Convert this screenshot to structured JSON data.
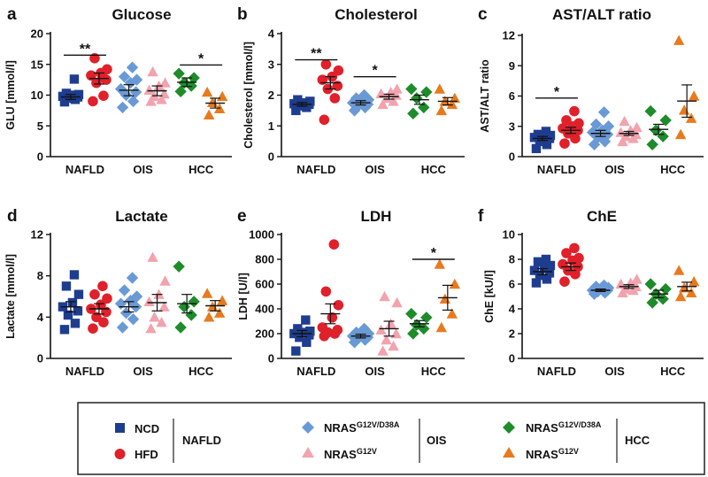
{
  "figure": {
    "legend": {
      "nafld_label": "NAFLD",
      "ois_label": "OIS",
      "hcc_label": "HCC",
      "entries": [
        {
          "key": "ncd",
          "label": "NCD",
          "sup": "",
          "shape": "square",
          "color": "#1f3d8f"
        },
        {
          "key": "hfd",
          "label": "HFD",
          "sup": "",
          "shape": "circle",
          "color": "#e0202a"
        },
        {
          "key": "ois_d38a",
          "label": "NRAS",
          "sup": "G12V/D38A",
          "shape": "diamond",
          "color": "#6a9ad6"
        },
        {
          "key": "ois_g12v",
          "label": "NRAS",
          "sup": "G12V",
          "shape": "triangle",
          "color": "#f2a3ad"
        },
        {
          "key": "hcc_d38a",
          "label": "NRAS",
          "sup": "G12V/D38A",
          "shape": "diamond",
          "color": "#1e8c2a"
        },
        {
          "key": "hcc_g12v",
          "label": "NRAS",
          "sup": "G12V",
          "shape": "triangle",
          "color": "#e87a1e"
        }
      ]
    }
  },
  "chart_data": [
    {
      "panel": "a",
      "type": "scatter",
      "title": "Glucose",
      "ylabel": "GLU [mmol/l]",
      "ylim": [
        0,
        20
      ],
      "yticks": [
        0,
        5,
        10,
        15,
        20
      ],
      "tick_labels": [
        "0",
        "5",
        "10",
        "15",
        "20"
      ],
      "groups": [
        "NAFLD",
        "OIS",
        "HCC"
      ],
      "series": [
        {
          "key": "ncd",
          "mean": 9.7,
          "sem": 0.4,
          "values": [
            8.9,
            9.3,
            9.5,
            9.7,
            9.8,
            10.0,
            10.1,
            10.3,
            12.6,
            9.6
          ]
        },
        {
          "key": "hfd",
          "mean": 12.7,
          "sem": 0.9,
          "values": [
            9.0,
            9.9,
            12.0,
            12.5,
            13.2,
            13.6,
            14.2,
            16.0,
            13.0
          ]
        },
        {
          "key": "ois_d38a",
          "mean": 10.8,
          "sem": 0.9,
          "values": [
            8.0,
            9.0,
            10.0,
            10.5,
            11.0,
            12.0,
            12.5,
            13.0,
            14.5
          ]
        },
        {
          "key": "ois_g12v",
          "mean": 10.7,
          "sem": 0.8,
          "values": [
            9.0,
            9.3,
            9.8,
            10.2,
            10.8,
            11.5,
            12.0,
            13.8
          ]
        },
        {
          "key": "hcc_d38a",
          "mean": 12.1,
          "sem": 0.7,
          "values": [
            10.6,
            11.5,
            12.0,
            12.8,
            13.5
          ]
        },
        {
          "key": "hcc_g12v",
          "mean": 8.7,
          "sem": 0.8,
          "values": [
            6.8,
            7.8,
            8.8,
            9.8,
            10.5
          ]
        }
      ],
      "significance": [
        {
          "group": "NAFLD",
          "label": "**",
          "level": 16.5
        },
        {
          "group": "HCC",
          "label": "*",
          "level": 14.9
        }
      ]
    },
    {
      "panel": "b",
      "type": "scatter",
      "title": "Cholesterol",
      "ylabel": "Cholesterol [mmol/l]",
      "ylim": [
        0,
        4
      ],
      "yticks": [
        0,
        1,
        2,
        3,
        4
      ],
      "tick_labels": [
        "0",
        "1",
        "2",
        "3",
        "4"
      ],
      "groups": [
        "NAFLD",
        "OIS",
        "HCC"
      ],
      "series": [
        {
          "key": "ncd",
          "mean": 1.7,
          "sem": 0.06,
          "values": [
            1.5,
            1.6,
            1.65,
            1.7,
            1.72,
            1.75,
            1.8,
            1.85
          ]
        },
        {
          "key": "hfd",
          "mean": 2.4,
          "sem": 0.2,
          "values": [
            1.2,
            1.9,
            2.2,
            2.3,
            2.5,
            2.6,
            2.8,
            3.0
          ]
        },
        {
          "key": "ois_d38a",
          "mean": 1.75,
          "sem": 0.07,
          "values": [
            1.5,
            1.6,
            1.65,
            1.7,
            1.75,
            1.8,
            1.85,
            1.9,
            2.0
          ]
        },
        {
          "key": "ois_g12v",
          "mean": 1.95,
          "sem": 0.08,
          "values": [
            1.7,
            1.8,
            1.9,
            2.0,
            2.05,
            2.1,
            2.2
          ]
        },
        {
          "key": "hcc_d38a",
          "mean": 1.85,
          "sem": 0.15,
          "values": [
            1.4,
            1.6,
            1.9,
            2.1,
            2.2
          ]
        },
        {
          "key": "hcc_g12v",
          "mean": 1.8,
          "sem": 0.12,
          "values": [
            1.5,
            1.7,
            1.8,
            1.9,
            2.2
          ]
        }
      ],
      "significance": [
        {
          "group": "NAFLD",
          "label": "**",
          "level": 3.15
        },
        {
          "group": "OIS",
          "label": "*",
          "level": 2.6
        }
      ]
    },
    {
      "panel": "c",
      "type": "scatter",
      "title": "AST/ALT ratio",
      "ylabel": "AST/ALT ratio",
      "ylim": [
        0,
        12
      ],
      "yticks": [
        0,
        3,
        6,
        9,
        12
      ],
      "tick_labels": [
        "0",
        "3",
        "6",
        "9",
        "12"
      ],
      "groups": [
        "NAFLD",
        "OIS",
        "HCC"
      ],
      "series": [
        {
          "key": "ncd",
          "mean": 1.8,
          "sem": 0.2,
          "values": [
            0.8,
            1.2,
            1.5,
            1.8,
            1.9,
            2.0,
            2.1,
            2.2,
            2.5
          ]
        },
        {
          "key": "hfd",
          "mean": 2.6,
          "sem": 0.3,
          "values": [
            1.3,
            1.8,
            2.3,
            2.6,
            2.8,
            3.0,
            3.3,
            3.6,
            4.5
          ]
        },
        {
          "key": "ois_d38a",
          "mean": 2.3,
          "sem": 0.3,
          "values": [
            1.2,
            1.5,
            1.9,
            2.2,
            2.4,
            2.6,
            3.0,
            3.2,
            4.4
          ]
        },
        {
          "key": "ois_g12v",
          "mean": 2.3,
          "sem": 0.2,
          "values": [
            1.5,
            1.8,
            2.0,
            2.2,
            2.4,
            2.6,
            2.9,
            3.5
          ]
        },
        {
          "key": "hcc_d38a",
          "mean": 2.7,
          "sem": 0.5,
          "values": [
            1.2,
            2.0,
            2.6,
            3.6,
            4.5
          ]
        },
        {
          "key": "hcc_g12v",
          "mean": 5.5,
          "sem": 1.6,
          "values": [
            2.2,
            3.8,
            4.6,
            6.0,
            11.5
          ]
        }
      ],
      "significance": [
        {
          "group": "NAFLD",
          "label": "*",
          "level": 5.8
        }
      ]
    },
    {
      "panel": "d",
      "type": "scatter",
      "title": "Lactate",
      "ylabel": "Lactate [mmol/l]",
      "ylim": [
        0,
        12
      ],
      "yticks": [
        0,
        4,
        8,
        12
      ],
      "tick_labels": [
        "0",
        "4",
        "8",
        "12"
      ],
      "groups": [
        "NAFLD",
        "OIS",
        "HCC"
      ],
      "series": [
        {
          "key": "ncd",
          "mean": 5.0,
          "sem": 0.5,
          "values": [
            2.8,
            3.4,
            4.2,
            4.6,
            5.0,
            5.4,
            6.2,
            7.0,
            8.1
          ]
        },
        {
          "key": "hfd",
          "mean": 4.8,
          "sem": 0.5,
          "values": [
            2.9,
            3.5,
            4.0,
            4.5,
            4.8,
            5.2,
            5.8,
            6.2,
            7.0
          ]
        },
        {
          "key": "ois_d38a",
          "mean": 5.0,
          "sem": 0.5,
          "values": [
            3.0,
            3.8,
            4.4,
            5.0,
            5.3,
            5.6,
            6.0,
            6.6,
            7.8
          ]
        },
        {
          "key": "ois_g12v",
          "mean": 5.4,
          "sem": 0.8,
          "values": [
            2.9,
            3.5,
            4.0,
            5.0,
            5.5,
            6.2,
            7.5,
            9.8
          ]
        },
        {
          "key": "hcc_d38a",
          "mean": 5.3,
          "sem": 0.9,
          "values": [
            3.0,
            4.2,
            5.0,
            5.5,
            8.9
          ]
        },
        {
          "key": "hcc_g12v",
          "mean": 5.1,
          "sem": 0.5,
          "values": [
            4.0,
            4.4,
            5.0,
            5.6,
            6.3
          ]
        }
      ],
      "significance": []
    },
    {
      "panel": "e",
      "type": "scatter",
      "title": "LDH",
      "ylabel": "LDH [U/l]",
      "ylim": [
        0,
        1000
      ],
      "yticks": [
        0,
        200,
        400,
        600,
        800,
        1000
      ],
      "tick_labels": [
        "0",
        "200",
        "400",
        "600",
        "800",
        "1000"
      ],
      "groups": [
        "NAFLD",
        "OIS",
        "HCC"
      ],
      "series": [
        {
          "key": "ncd",
          "mean": 200,
          "sem": 25,
          "values": [
            60,
            130,
            170,
            190,
            200,
            210,
            220,
            240,
            310
          ]
        },
        {
          "key": "hfd",
          "mean": 360,
          "sem": 80,
          "values": [
            180,
            200,
            210,
            230,
            250,
            330,
            430,
            540,
            920
          ]
        },
        {
          "key": "ois_d38a",
          "mean": 180,
          "sem": 15,
          "values": [
            130,
            150,
            160,
            170,
            180,
            190,
            200,
            210,
            240
          ]
        },
        {
          "key": "ois_g12v",
          "mean": 240,
          "sem": 60,
          "values": [
            60,
            100,
            150,
            200,
            230,
            280,
            450,
            500
          ]
        },
        {
          "key": "hcc_d38a",
          "mean": 280,
          "sem": 25,
          "values": [
            200,
            240,
            270,
            330,
            360
          ]
        },
        {
          "key": "hcc_g12v",
          "mean": 490,
          "sem": 100,
          "values": [
            250,
            360,
            480,
            600,
            760
          ]
        }
      ],
      "significance": [
        {
          "group": "HCC",
          "label": "*",
          "level": 800
        }
      ]
    },
    {
      "panel": "f",
      "type": "scatter",
      "title": "ChE",
      "ylabel": "ChE [kU/l]",
      "ylim": [
        0,
        10
      ],
      "yticks": [
        0,
        2,
        4,
        6,
        8,
        10
      ],
      "tick_labels": [
        "0",
        "2",
        "4",
        "6",
        "8",
        "10"
      ],
      "groups": [
        "NAFLD",
        "OIS",
        "HCC"
      ],
      "series": [
        {
          "key": "ncd",
          "mean": 7.0,
          "sem": 0.25,
          "values": [
            6.1,
            6.4,
            6.7,
            6.9,
            7.1,
            7.3,
            7.5,
            7.8,
            8.0
          ]
        },
        {
          "key": "hfd",
          "mean": 7.4,
          "sem": 0.3,
          "values": [
            6.2,
            6.8,
            7.1,
            7.4,
            7.6,
            7.9,
            8.1,
            8.5,
            8.9
          ]
        },
        {
          "key": "ois_d38a",
          "mean": 5.5,
          "sem": 0.1,
          "values": [
            5.2,
            5.3,
            5.4,
            5.5,
            5.5,
            5.6,
            5.7,
            5.8,
            5.9
          ]
        },
        {
          "key": "ois_g12v",
          "mean": 5.8,
          "sem": 0.15,
          "values": [
            5.3,
            5.5,
            5.6,
            5.8,
            6.0,
            6.1,
            6.4
          ]
        },
        {
          "key": "hcc_d38a",
          "mean": 5.2,
          "sem": 0.3,
          "values": [
            4.5,
            4.8,
            5.2,
            5.6,
            6.0
          ]
        },
        {
          "key": "hcc_g12v",
          "mean": 5.8,
          "sem": 0.35,
          "values": [
            5.0,
            5.3,
            5.7,
            6.2,
            7.1
          ]
        }
      ],
      "significance": []
    }
  ]
}
